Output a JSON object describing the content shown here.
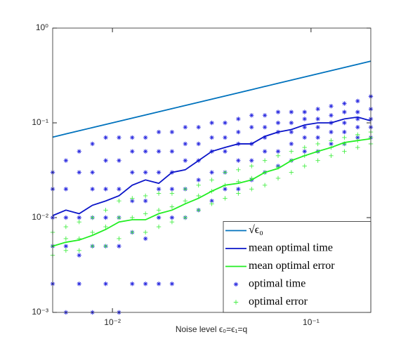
{
  "chart_data": {
    "type": "line-scatter",
    "xlabel": "Noise level ϵ₀=ϵ₁=q",
    "xscale": "log",
    "yscale": "log",
    "xlim": [
      0.005,
      0.2
    ],
    "ylim": [
      0.001,
      1
    ],
    "xticks": [
      {
        "value": 0.01,
        "label": "10⁻²"
      },
      {
        "value": 0.1,
        "label": "10⁻¹"
      }
    ],
    "yticks": [
      {
        "value": 0.001,
        "label": "10⁻³"
      },
      {
        "value": 0.01,
        "label": "10⁻²"
      },
      {
        "value": 0.1,
        "label": "10⁻¹"
      },
      {
        "value": 1,
        "label": "10⁰"
      }
    ],
    "legend": "southeast",
    "x": [
      0.005,
      0.00583,
      0.0068,
      0.00793,
      0.00925,
      0.01079,
      0.01258,
      0.01467,
      0.01711,
      0.01995,
      0.02327,
      0.02714,
      0.03165,
      0.03691,
      0.04304,
      0.0502,
      0.05854,
      0.06827,
      0.07962,
      0.09285,
      0.10828,
      0.12628,
      0.14727,
      0.17175,
      0.2
    ],
    "series": [
      {
        "name": "√ϵ₀",
        "kind": "line",
        "color": "#0072bd",
        "values": [
          0.0707,
          0.0764,
          0.0825,
          0.0891,
          0.0962,
          0.1039,
          0.1122,
          0.1211,
          0.1308,
          0.1412,
          0.1525,
          0.1647,
          0.1779,
          0.1921,
          0.2075,
          0.2241,
          0.242,
          0.2613,
          0.2822,
          0.3047,
          0.3291,
          0.3554,
          0.3838,
          0.4144,
          0.4472
        ]
      },
      {
        "name": "mean optimal time",
        "kind": "line",
        "color": "#0a14c8",
        "values": [
          0.0105,
          0.012,
          0.011,
          0.0135,
          0.015,
          0.017,
          0.022,
          0.025,
          0.023,
          0.03,
          0.032,
          0.04,
          0.05,
          0.055,
          0.06,
          0.06,
          0.072,
          0.08,
          0.085,
          0.095,
          0.1,
          0.1,
          0.11,
          0.115,
          0.105
        ]
      },
      {
        "name": "mean optimal error",
        "kind": "line",
        "color": "#22ee22",
        "values": [
          0.005,
          0.0055,
          0.0058,
          0.0065,
          0.0075,
          0.009,
          0.0095,
          0.0095,
          0.011,
          0.012,
          0.014,
          0.016,
          0.019,
          0.022,
          0.023,
          0.025,
          0.03,
          0.033,
          0.04,
          0.045,
          0.05,
          0.055,
          0.062,
          0.065,
          0.068
        ]
      },
      {
        "name": "optimal time",
        "kind": "star",
        "color": "#2a2ae0",
        "values": [
          [
            0.03,
            0.02,
            0.01,
            0.005,
            0.002
          ],
          [
            0.04,
            0.02,
            0.01,
            0.005,
            0.001
          ],
          [
            0.05,
            0.03,
            0.01,
            0.004,
            0.002
          ],
          [
            0.06,
            0.03,
            0.02,
            0.01,
            0.005,
            0.001
          ],
          [
            0.07,
            0.04,
            0.02,
            0.01,
            0.005,
            0.002
          ],
          [
            0.07,
            0.04,
            0.02,
            0.01,
            0.005,
            0.001
          ],
          [
            0.07,
            0.05,
            0.03,
            0.015,
            0.007,
            0.002
          ],
          [
            0.07,
            0.05,
            0.03,
            0.015,
            0.006,
            0.002
          ],
          [
            0.08,
            0.05,
            0.03,
            0.02,
            0.01,
            0.002
          ],
          [
            0.08,
            0.05,
            0.03,
            0.02,
            0.01,
            0.002
          ],
          [
            0.09,
            0.06,
            0.04,
            0.02,
            0.01
          ],
          [
            0.09,
            0.06,
            0.04,
            0.025,
            0.012
          ],
          [
            0.1,
            0.07,
            0.05,
            0.03,
            0.015
          ],
          [
            0.1,
            0.07,
            0.05,
            0.03,
            0.02
          ],
          [
            0.11,
            0.08,
            0.06,
            0.04,
            0.02
          ],
          [
            0.12,
            0.09,
            0.06,
            0.04,
            0.025
          ],
          [
            0.12,
            0.09,
            0.07,
            0.05,
            0.03
          ],
          [
            0.13,
            0.1,
            0.08,
            0.05,
            0.035
          ],
          [
            0.13,
            0.1,
            0.08,
            0.06,
            0.04
          ],
          [
            0.13,
            0.11,
            0.09,
            0.07,
            0.05
          ],
          [
            0.14,
            0.11,
            0.09,
            0.07,
            0.05
          ],
          [
            0.15,
            0.12,
            0.1,
            0.08,
            0.06
          ],
          [
            0.16,
            0.13,
            0.1,
            0.08,
            0.06
          ],
          [
            0.17,
            0.13,
            0.11,
            0.09,
            0.07
          ],
          [
            0.19,
            0.14,
            0.11,
            0.09,
            0.07
          ]
        ]
      },
      {
        "name": "optimal error",
        "kind": "plus",
        "color": "#44ee44",
        "values": [
          [
            0.007,
            0.005,
            0.004
          ],
          [
            0.008,
            0.006,
            0.0045
          ],
          [
            0.009,
            0.006,
            0.0045
          ],
          [
            0.01,
            0.007,
            0.005
          ],
          [
            0.012,
            0.008,
            0.005
          ],
          [
            0.015,
            0.01,
            0.006
          ],
          [
            0.016,
            0.01,
            0.007
          ],
          [
            0.017,
            0.011,
            0.007
          ],
          [
            0.018,
            0.012,
            0.008
          ],
          [
            0.018,
            0.013,
            0.009
          ],
          [
            0.02,
            0.015,
            0.01
          ],
          [
            0.022,
            0.017,
            0.012
          ],
          [
            0.025,
            0.019,
            0.014
          ],
          [
            0.03,
            0.022,
            0.016
          ],
          [
            0.032,
            0.024,
            0.018
          ],
          [
            0.035,
            0.026,
            0.02
          ],
          [
            0.04,
            0.03,
            0.022
          ],
          [
            0.045,
            0.034,
            0.026
          ],
          [
            0.05,
            0.04,
            0.03
          ],
          [
            0.055,
            0.045,
            0.035
          ],
          [
            0.06,
            0.05,
            0.04
          ],
          [
            0.065,
            0.055,
            0.045
          ],
          [
            0.07,
            0.06,
            0.05
          ],
          [
            0.075,
            0.065,
            0.055
          ],
          [
            0.08,
            0.07,
            0.06
          ]
        ]
      }
    ]
  }
}
